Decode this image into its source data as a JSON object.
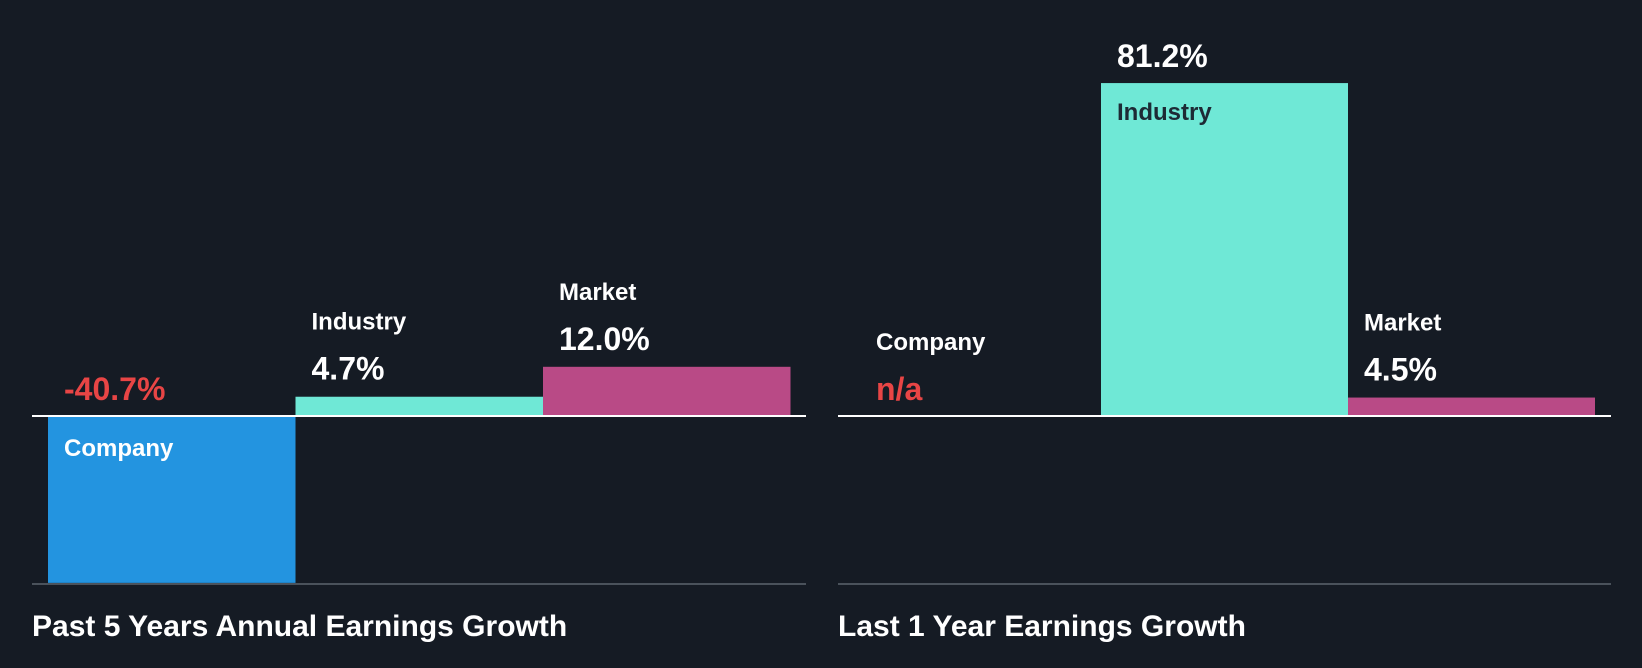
{
  "colors": {
    "background": "#151b24",
    "company": "#2394e0",
    "industry": "#6fe8d6",
    "market": "#b94a86",
    "negative": "#e84545",
    "text": "#ffffff",
    "inner_label_dark": "#1d2a35",
    "axis": "#ffffff",
    "baseline": "#4a525b"
  },
  "chart_data": [
    {
      "type": "bar",
      "title": "Past 5 Years Annual Earnings Growth",
      "xlabel": "",
      "ylabel": "",
      "ylim": [
        -70,
        70
      ],
      "grid": false,
      "legend": "none",
      "categories": [
        "Company",
        "Industry",
        "Market"
      ],
      "values": [
        -40.7,
        4.7,
        12.0
      ],
      "value_labels": [
        "-40.7%",
        "4.7%",
        "12.0%"
      ],
      "colors": [
        "#2394e0",
        "#6fe8d6",
        "#b94a86"
      ]
    },
    {
      "type": "bar",
      "title": "Last 1 Year Earnings Growth",
      "xlabel": "",
      "ylabel": "",
      "ylim": [
        -70,
        70
      ],
      "grid": false,
      "legend": "none",
      "categories": [
        "Company",
        "Industry",
        "Market"
      ],
      "values": [
        null,
        81.2,
        4.5
      ],
      "value_labels": [
        "n/a",
        "81.2%",
        "4.5%"
      ],
      "colors": [
        "#2394e0",
        "#6fe8d6",
        "#b94a86"
      ]
    }
  ]
}
